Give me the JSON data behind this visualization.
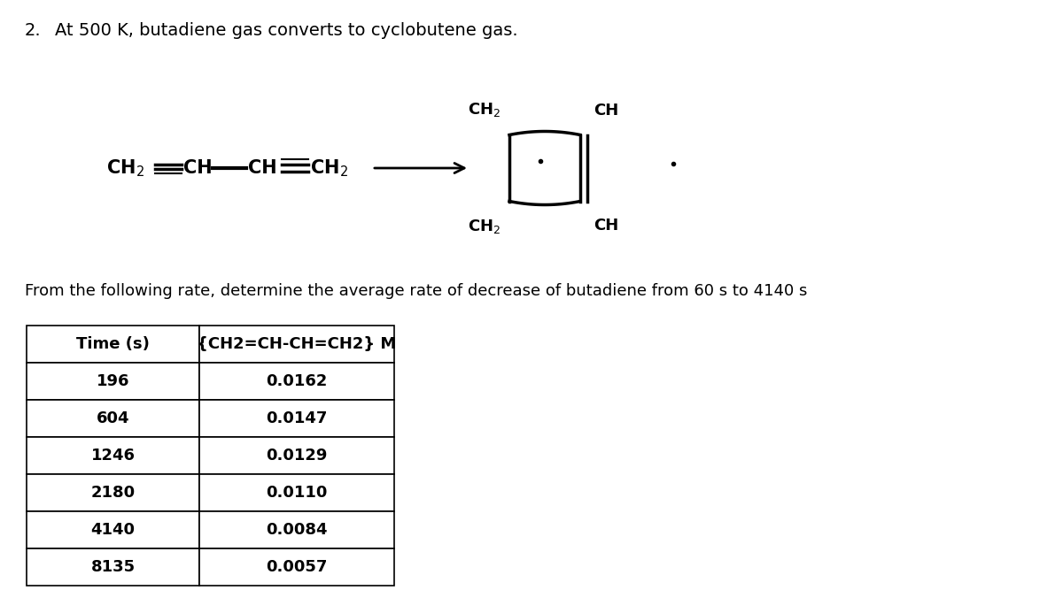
{
  "title_number": "2.",
  "title_text": "At 500 K, butadiene gas converts to cyclobutene gas.",
  "question_text": "From the following rate, determine the average rate of decrease of butadiene from 60 s to 4140 s",
  "col_headers": [
    "Time (s)",
    "{CH2=CH-CH=CH2} M"
  ],
  "table_data": [
    [
      "196",
      "0.0162"
    ],
    [
      "604",
      "0.0147"
    ],
    [
      "1246",
      "0.0129"
    ],
    [
      "2180",
      "0.0110"
    ],
    [
      "4140",
      "0.0084"
    ],
    [
      "8135",
      "0.0057"
    ]
  ],
  "background_color": "#ffffff",
  "text_color": "#000000",
  "font_size_title": 14,
  "font_size_question": 13,
  "font_size_table": 13,
  "font_size_chem": 13
}
